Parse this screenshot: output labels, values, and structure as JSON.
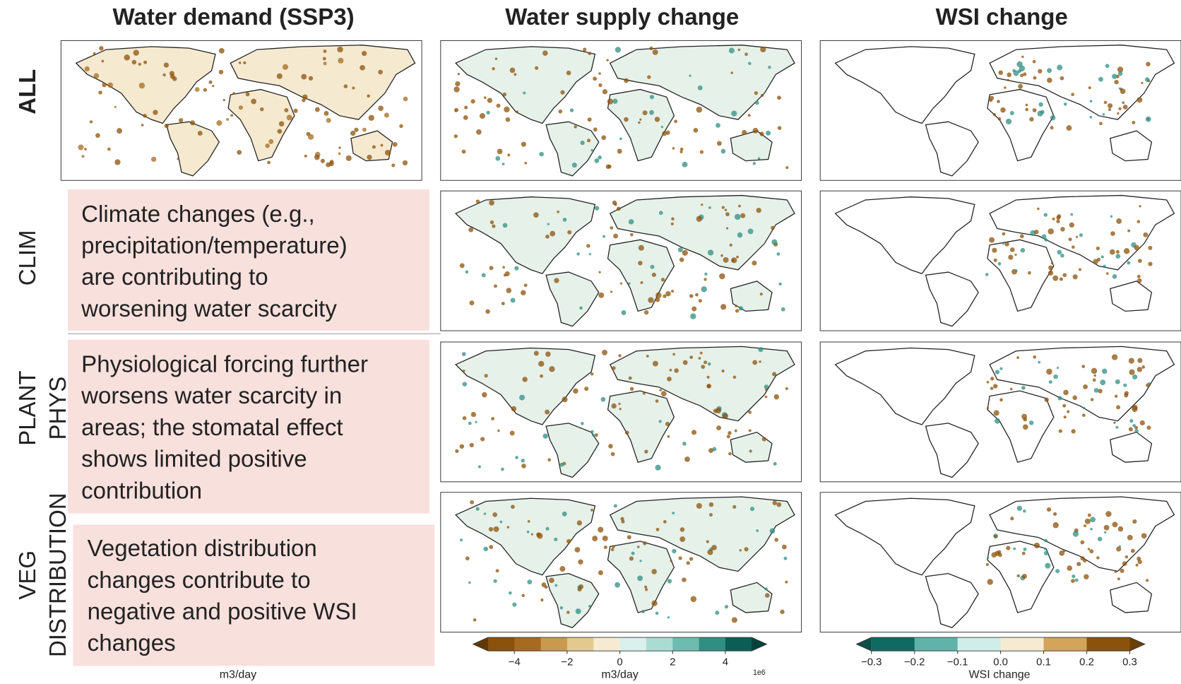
{
  "column_titles": [
    "Water demand (SSP3)",
    "Water supply change",
    "WSI change"
  ],
  "rows": [
    {
      "label": [
        "ALL"
      ]
    },
    {
      "label": [
        "CLIM"
      ],
      "note": [
        "Climate changes (e.g.,",
        "precipitation/temperature)",
        "are contributing to",
        "worsening water scarcity"
      ]
    },
    {
      "label": [
        "PLANT",
        "PHYS"
      ],
      "note": [
        "Physiological forcing further",
        "worsens water scarcity in",
        "areas; the stomatal effect",
        "shows limited positive",
        "contribution"
      ]
    },
    {
      "label": [
        "VEG",
        "DISTRIBUTION"
      ],
      "note": [
        "Vegetation distribution",
        "changes contribute to",
        "negative and positive WSI",
        "changes"
      ]
    }
  ],
  "colorbars": [
    {
      "label": "m3/day"
    },
    {
      "label": "m3/day",
      "offset_label": "1e6",
      "xlim": [
        -5,
        5
      ],
      "xticks": [
        {
          "value": -4,
          "label": "−4"
        },
        {
          "value": -2,
          "label": "−2"
        },
        0,
        2,
        4
      ],
      "colors": [
        "#8c510a",
        "#a66b1f",
        "#c99a4e",
        "#e3c98e",
        "#f6ebd2",
        "#daf0ec",
        "#a9ddd4",
        "#6cbdb0",
        "#2f8f83",
        "#0b5e55"
      ],
      "extend_colors": [
        "#5e3805",
        "#01433b"
      ]
    },
    {
      "label": "WSI change",
      "xlim": [
        -0.3,
        0.3
      ],
      "xticks": [
        {
          "value": -0.3,
          "label": "−0.3"
        },
        {
          "value": -0.2,
          "label": "−0.2"
        },
        {
          "value": -0.1,
          "label": "−0.1"
        },
        {
          "value": 0,
          "label": "0.0"
        },
        0.1,
        0.2,
        0.3
      ],
      "colors": [
        "#0f6b62",
        "#5fb3a8",
        "#cfeeea",
        "#f6ebd2",
        "#d3a45a",
        "#8c510a"
      ],
      "extend_colors": [
        "#0a4f48",
        "#6b3d08"
      ]
    }
  ]
}
